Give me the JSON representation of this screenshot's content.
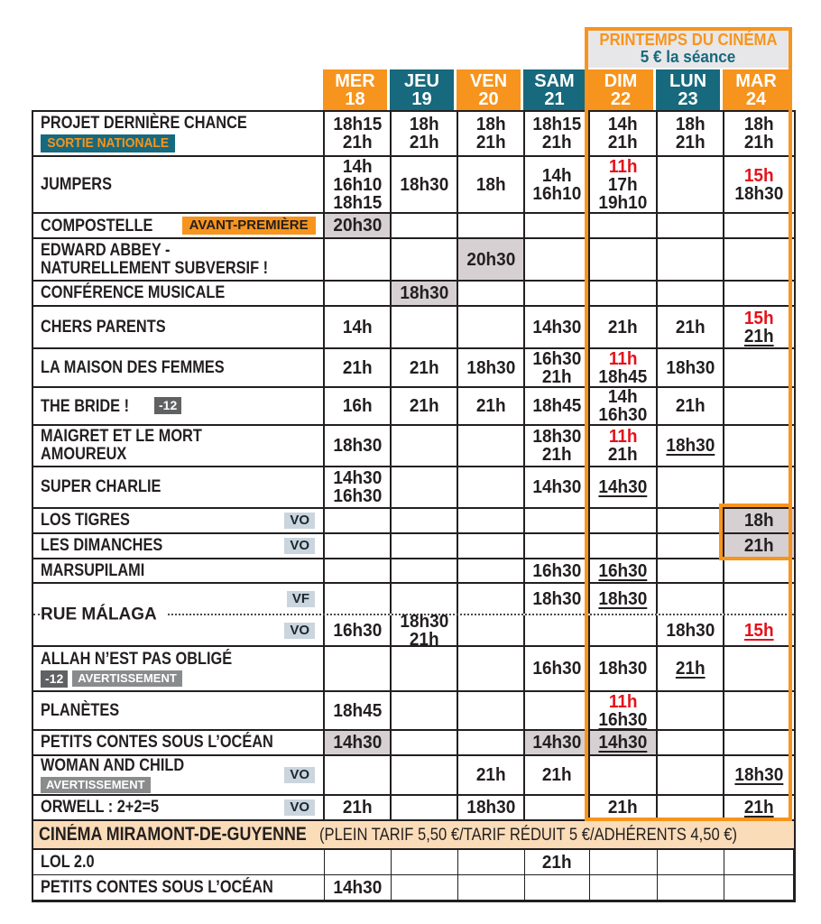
{
  "banner": {
    "title": "PRINTEMPS DU CINÉMA",
    "subtitle": "5 € la séance"
  },
  "colors": {
    "orange": "#f7941d",
    "teal": "#17697d",
    "red": "#e4121b",
    "gray_cell": "#d7d0d3",
    "banner_bg": "#e7e7e9",
    "section_bg": "#fbdcb8"
  },
  "columns": [
    {
      "day": "MER",
      "num": "18",
      "color": "orange"
    },
    {
      "day": "JEU",
      "num": "19",
      "color": "teal"
    },
    {
      "day": "VEN",
      "num": "20",
      "color": "orange"
    },
    {
      "day": "SAM",
      "num": "21",
      "color": "teal"
    },
    {
      "day": "DIM",
      "num": "22",
      "color": "orange"
    },
    {
      "day": "LUN",
      "num": "23",
      "color": "teal"
    },
    {
      "day": "MAR",
      "num": "24",
      "color": "orange"
    }
  ],
  "rows": [
    {
      "title": "PROJET DERNIÈRE CHANCE",
      "below_badges": [
        {
          "text": "SORTIE NATIONALE",
          "style": "sortie"
        }
      ],
      "cells": [
        {
          "times": [
            {
              "t": "18h15"
            },
            {
              "t": "21h"
            }
          ]
        },
        {
          "times": [
            {
              "t": "18h"
            },
            {
              "t": "21h"
            }
          ]
        },
        {
          "times": [
            {
              "t": "18h"
            },
            {
              "t": "21h"
            }
          ]
        },
        {
          "times": [
            {
              "t": "18h15"
            },
            {
              "t": "21h"
            }
          ]
        },
        {
          "times": [
            {
              "t": "14h"
            },
            {
              "t": "21h"
            }
          ]
        },
        {
          "times": [
            {
              "t": "18h"
            },
            {
              "t": "21h"
            }
          ]
        },
        {
          "times": [
            {
              "t": "18h"
            },
            {
              "t": "21h"
            }
          ]
        }
      ]
    },
    {
      "title": "JUMPERS",
      "cells": [
        {
          "times": [
            {
              "t": "14h"
            },
            {
              "t": "16h10"
            },
            {
              "t": "18h15"
            }
          ]
        },
        {
          "times": [
            {
              "t": "18h30"
            }
          ]
        },
        {
          "times": [
            {
              "t": "18h"
            }
          ]
        },
        {
          "times": [
            {
              "t": "14h"
            },
            {
              "t": "16h10"
            }
          ]
        },
        {
          "times": [
            {
              "t": "11h",
              "red": true
            },
            {
              "t": "17h"
            },
            {
              "t": "19h10"
            }
          ]
        },
        null,
        {
          "times": [
            {
              "t": "15h",
              "red": true
            },
            {
              "t": "18h30"
            }
          ]
        }
      ]
    },
    {
      "title": "COMPOSTELLE",
      "inline_badges": [
        {
          "text": "AVANT-PREMIÈRE",
          "style": "avp"
        }
      ],
      "cells": [
        {
          "gray": true,
          "times": [
            {
              "t": "20h30"
            }
          ]
        },
        null,
        null,
        null,
        null,
        null,
        null
      ]
    },
    {
      "title": "EDWARD ABBEY -",
      "title2": "NATURELLEMENT SUBVERSIF !",
      "cells": [
        null,
        null,
        {
          "gray": true,
          "times": [
            {
              "t": "20h30"
            }
          ]
        },
        null,
        null,
        null,
        null
      ]
    },
    {
      "title": "CONFÉRENCE MUSICALE",
      "cells": [
        null,
        {
          "gray": true,
          "times": [
            {
              "t": "18h30"
            }
          ]
        },
        null,
        null,
        null,
        null,
        null
      ]
    },
    {
      "title": "CHERS PARENTS",
      "cells": [
        {
          "times": [
            {
              "t": "14h"
            }
          ]
        },
        null,
        null,
        {
          "times": [
            {
              "t": "14h30"
            }
          ]
        },
        {
          "times": [
            {
              "t": "21h"
            }
          ]
        },
        {
          "times": [
            {
              "t": "21h"
            }
          ]
        },
        {
          "times": [
            {
              "t": "15h",
              "red": true
            },
            {
              "t": "21h",
              "u": true
            }
          ]
        }
      ]
    },
    {
      "title": "LA MAISON DES FEMMES",
      "cells": [
        {
          "times": [
            {
              "t": "21h"
            }
          ]
        },
        {
          "times": [
            {
              "t": "21h"
            }
          ]
        },
        {
          "times": [
            {
              "t": "18h30"
            }
          ]
        },
        {
          "times": [
            {
              "t": "16h30"
            },
            {
              "t": "21h"
            }
          ]
        },
        {
          "times": [
            {
              "t": "11h",
              "red": true
            },
            {
              "t": "18h45"
            }
          ]
        },
        {
          "times": [
            {
              "t": "18h30"
            }
          ]
        },
        null
      ]
    },
    {
      "title": "THE BRIDE !",
      "inline_badges": [
        {
          "text": "-12",
          "style": "minus12"
        }
      ],
      "cells": [
        {
          "times": [
            {
              "t": "16h"
            }
          ]
        },
        {
          "times": [
            {
              "t": "21h"
            }
          ]
        },
        {
          "times": [
            {
              "t": "21h"
            }
          ]
        },
        {
          "times": [
            {
              "t": "18h45"
            }
          ]
        },
        {
          "times": [
            {
              "t": "14h"
            },
            {
              "t": "16h30"
            }
          ]
        },
        {
          "times": [
            {
              "t": "21h"
            }
          ]
        },
        null
      ]
    },
    {
      "title": "MAIGRET ET LE MORT",
      "title2": "AMOUREUX",
      "cells": [
        {
          "times": [
            {
              "t": "18h30"
            }
          ]
        },
        null,
        null,
        {
          "times": [
            {
              "t": "18h30"
            },
            {
              "t": "21h"
            }
          ]
        },
        {
          "times": [
            {
              "t": "11h",
              "red": true
            },
            {
              "t": "21h"
            }
          ]
        },
        {
          "times": [
            {
              "t": "18h30",
              "u": true
            }
          ]
        },
        null
      ]
    },
    {
      "title": "SUPER CHARLIE",
      "cells": [
        {
          "times": [
            {
              "t": "14h30"
            },
            {
              "t": "16h30"
            }
          ]
        },
        null,
        null,
        {
          "times": [
            {
              "t": "14h30"
            }
          ]
        },
        {
          "times": [
            {
              "t": "14h30",
              "u": true
            }
          ]
        },
        null,
        null
      ]
    },
    {
      "title": "LOS TIGRES",
      "right_badge": "VO",
      "cells": [
        null,
        null,
        null,
        null,
        null,
        null,
        {
          "gray": true,
          "times": [
            {
              "t": "18h"
            }
          ]
        }
      ]
    },
    {
      "title": "LES DIMANCHES",
      "right_badge": "VO",
      "cells": [
        null,
        null,
        null,
        null,
        null,
        null,
        {
          "gray": true,
          "times": [
            {
              "t": "21h"
            }
          ]
        }
      ]
    },
    {
      "title": "MARSUPILAMI",
      "cells": [
        null,
        null,
        null,
        {
          "times": [
            {
              "t": "16h30"
            }
          ]
        },
        {
          "times": [
            {
              "t": "16h30",
              "u": true
            }
          ]
        },
        null,
        null
      ]
    },
    {
      "title": "RUE MÁLAGA",
      "subrows": [
        {
          "right_badge": "VF",
          "cells": [
            null,
            null,
            null,
            {
              "times": [
                {
                  "t": "18h30"
                }
              ]
            },
            {
              "times": [
                {
                  "t": "18h30",
                  "u": true
                }
              ]
            },
            null,
            null
          ]
        },
        {
          "right_badge": "VO",
          "cells": [
            {
              "times": [
                {
                  "t": "16h30"
                }
              ]
            },
            {
              "times": [
                {
                  "t": "18h30"
                },
                {
                  "t": "21h"
                }
              ]
            },
            null,
            null,
            null,
            {
              "times": [
                {
                  "t": "18h30"
                }
              ]
            },
            {
              "times": [
                {
                  "t": "15h",
                  "red": true,
                  "u": true
                }
              ]
            }
          ]
        }
      ]
    },
    {
      "title": "ALLAH N’EST PAS OBLIGÉ",
      "below_badges": [
        {
          "text": "-12",
          "style": "minus12"
        },
        {
          "text": "AVERTISSEMENT",
          "style": "avert"
        }
      ],
      "cells": [
        null,
        null,
        null,
        {
          "times": [
            {
              "t": "16h30"
            }
          ]
        },
        {
          "times": [
            {
              "t": "18h30"
            }
          ]
        },
        {
          "times": [
            {
              "t": "21h",
              "u": true
            }
          ]
        },
        null
      ]
    },
    {
      "title": "PLANÈTES",
      "cells": [
        {
          "times": [
            {
              "t": "18h45"
            }
          ]
        },
        null,
        null,
        null,
        {
          "times": [
            {
              "t": "11h",
              "red": true
            },
            {
              "t": "16h30",
              "u": true
            }
          ]
        },
        null,
        null
      ]
    },
    {
      "title": "PETITS CONTES SOUS L’OCÉAN",
      "cells": [
        {
          "gray": true,
          "times": [
            {
              "t": "14h30"
            }
          ]
        },
        null,
        null,
        {
          "gray": true,
          "times": [
            {
              "t": "14h30"
            }
          ]
        },
        {
          "gray": true,
          "times": [
            {
              "t": "14h30",
              "u": true
            }
          ]
        },
        null,
        null
      ]
    },
    {
      "title": "WOMAN AND CHILD",
      "right_badge": "VO",
      "below_badges": [
        {
          "text": "AVERTISSEMENT",
          "style": "avert"
        }
      ],
      "cells": [
        null,
        null,
        {
          "times": [
            {
              "t": "21h"
            }
          ]
        },
        {
          "times": [
            {
              "t": "21h"
            }
          ]
        },
        null,
        null,
        {
          "times": [
            {
              "t": "18h30",
              "u": true
            }
          ]
        }
      ]
    },
    {
      "title": "ORWELL : 2+2=5",
      "right_badge": "VO",
      "cells": [
        {
          "times": [
            {
              "t": "21h"
            }
          ]
        },
        null,
        {
          "times": [
            {
              "t": "18h30"
            }
          ]
        },
        null,
        {
          "times": [
            {
              "t": "21h"
            }
          ]
        },
        null,
        {
          "times": [
            {
              "t": "21h",
              "u": true
            }
          ]
        }
      ]
    }
  ],
  "section": {
    "title": "CINÉMA MIRAMONT-DE-GUYENNE",
    "details": "(PLEIN TARIF 5,50 €/TARIF RÉDUIT 5 €/ADHÉRENTS 4,50 €)"
  },
  "section_rows": [
    {
      "title": "LOL 2.0",
      "cells": [
        null,
        null,
        null,
        {
          "times": [
            {
              "t": "21h"
            }
          ]
        },
        null,
        null,
        null
      ]
    },
    {
      "title": "PETITS CONTES SOUS L’OCÉAN",
      "cells": [
        {
          "times": [
            {
              "t": "14h30"
            }
          ]
        },
        null,
        null,
        null,
        null,
        null,
        null
      ]
    }
  ]
}
